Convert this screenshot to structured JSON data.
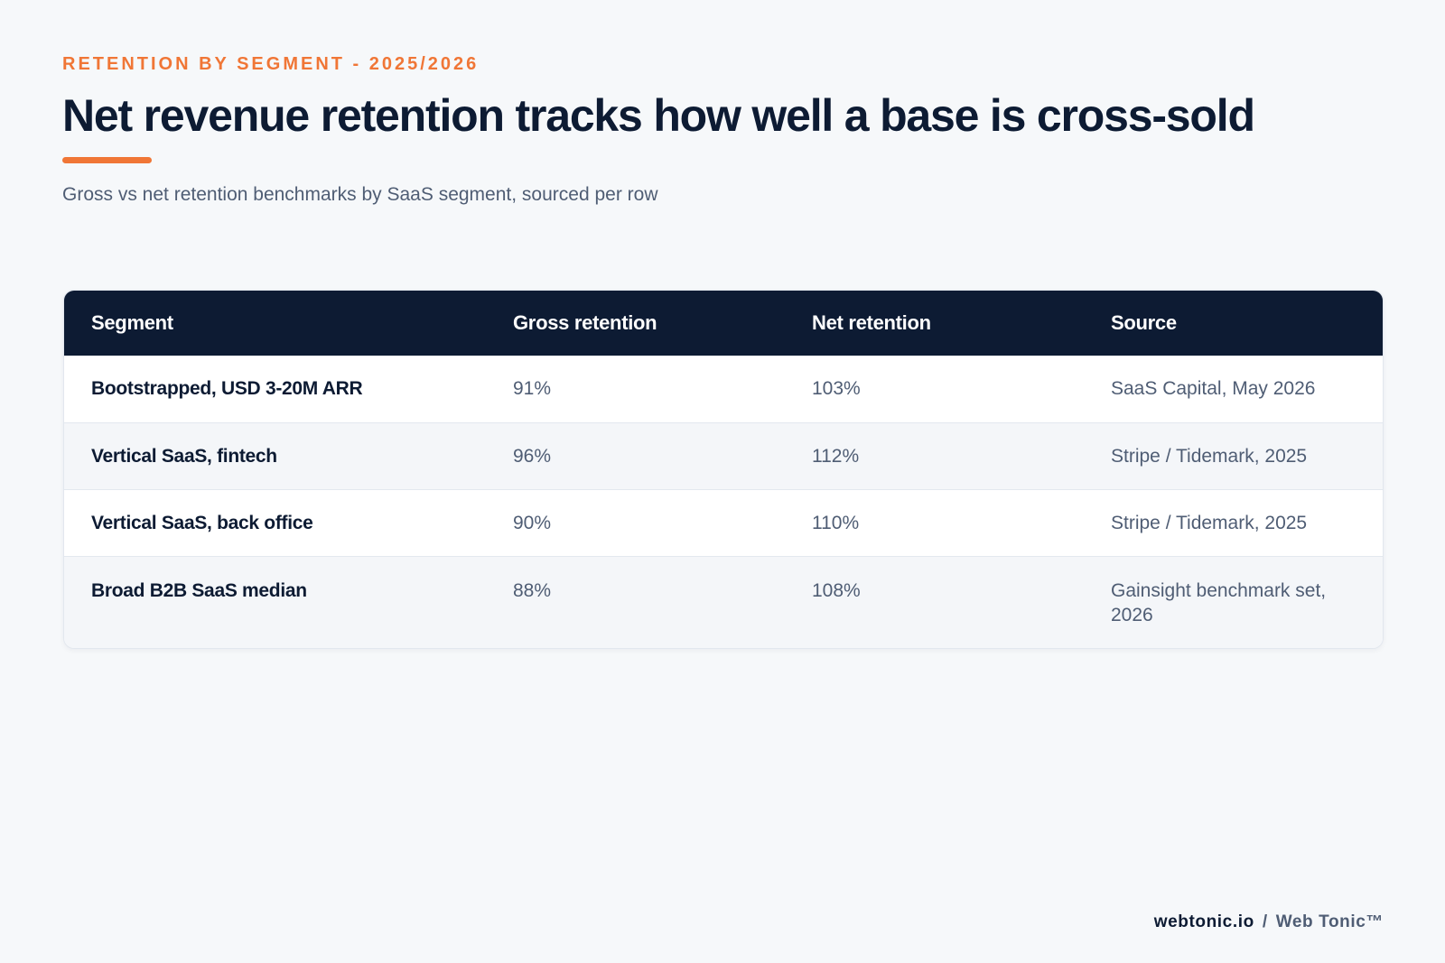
{
  "header": {
    "eyebrow": "RETENTION BY SEGMENT - 2025/2026",
    "title": "Net revenue retention tracks how well a base is cross-sold",
    "subtitle": "Gross vs net retention benchmarks by SaaS segment, sourced per row"
  },
  "table": {
    "columns": [
      "Segment",
      "Gross retention",
      "Net retention",
      "Source"
    ],
    "rows": [
      {
        "segment": "Bootstrapped, USD 3-20M ARR",
        "gross": "91%",
        "net": "103%",
        "source": "SaaS Capital, May 2026"
      },
      {
        "segment": "Vertical SaaS, fintech",
        "gross": "96%",
        "net": "112%",
        "source": "Stripe / Tidemark, 2025"
      },
      {
        "segment": "Vertical SaaS, back office",
        "gross": "90%",
        "net": "110%",
        "source": "Stripe / Tidemark, 2025"
      },
      {
        "segment": "Broad B2B SaaS median",
        "gross": "88%",
        "net": "108%",
        "source": "Gainsight benchmark set, 2026"
      }
    ]
  },
  "footer": {
    "domain": "webtonic.io",
    "separator": "/",
    "brand": "Web Tonic™"
  },
  "colors": {
    "accent": "#f07636",
    "navy": "#0d1b33",
    "muted_text": "#4f5d74",
    "background": "#f6f8fa"
  }
}
